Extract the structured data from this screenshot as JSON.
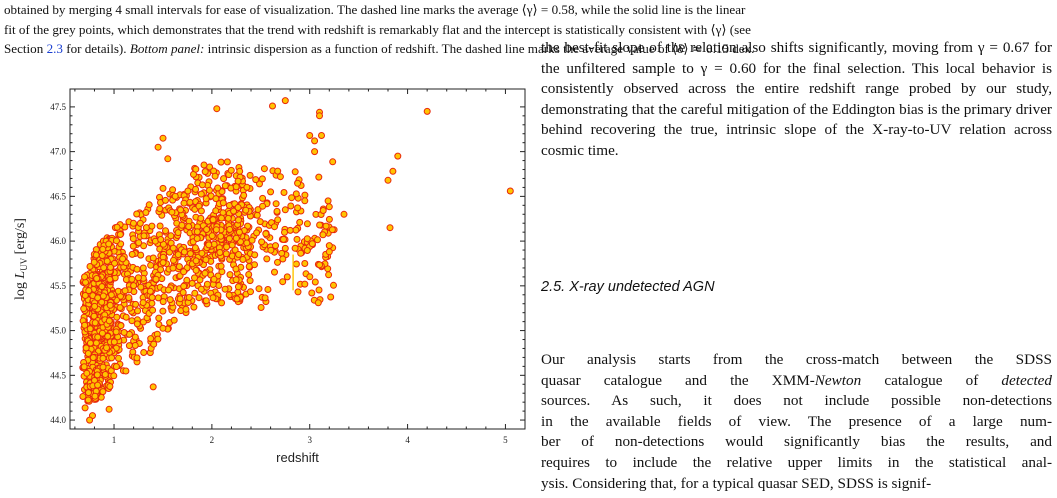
{
  "caption": {
    "line1": "obtained by merging 4 small intervals for ease of visualization. The dashed line marks the average ⟨γ⟩ = 0.58, while the solid line is the linear",
    "line2": "fit of the grey points, which demonstrates that the trend with redshift is remarkably flat and the intercept is statistically consistent with ⟨γ⟩ (see",
    "line3_a": "Section ",
    "line3_link": "2.3",
    "line3_b": " for details). ",
    "line3_panel": "Bottom panel:",
    "line3_c": " intrinsic dispersion as a function of redshift. The dashed line marks the average value of ⟨δ⟩ ≃ 0.15 dex."
  },
  "chart_data": {
    "type": "scatter",
    "xlabel": "redshift",
    "ylabel": "log L_UV [erg/s]",
    "xlim": [
      0.55,
      5.2
    ],
    "ylim": [
      43.9,
      47.7
    ],
    "xticks": [
      1,
      2,
      3,
      4,
      5
    ],
    "xtick_labels": [
      "1",
      "2",
      "3",
      "4",
      "5"
    ],
    "yticks": [
      44.0,
      44.5,
      45.0,
      45.5,
      46.0,
      46.5,
      47.0,
      47.5
    ],
    "ytick_labels": [
      "44.0",
      "44.5",
      "45.0",
      "45.5",
      "46.0",
      "46.5",
      "47.0",
      "47.5"
    ],
    "grid": false,
    "marker_fill": "#ffc400",
    "marker_edge": "#e8280c",
    "outliers": [
      [
        2.05,
        47.48
      ],
      [
        2.62,
        47.51
      ],
      [
        2.75,
        47.57
      ],
      [
        3.1,
        47.44
      ],
      [
        3.1,
        47.4
      ],
      [
        4.2,
        47.45
      ],
      [
        3.0,
        47.18
      ],
      [
        3.05,
        47.12
      ],
      [
        3.12,
        47.18
      ],
      [
        3.05,
        47.0
      ],
      [
        3.8,
        46.68
      ],
      [
        3.85,
        46.78
      ],
      [
        3.9,
        46.95
      ],
      [
        5.05,
        46.56
      ],
      [
        3.82,
        46.15
      ],
      [
        3.2,
        45.95
      ],
      [
        3.2,
        45.88
      ],
      [
        3.35,
        46.3
      ],
      [
        2.95,
        46.45
      ],
      [
        2.7,
        46.72
      ],
      [
        2.75,
        46.35
      ],
      [
        2.6,
        46.55
      ],
      [
        1.5,
        47.15
      ],
      [
        1.45,
        47.05
      ],
      [
        1.55,
        46.92
      ],
      [
        2.95,
        45.52
      ],
      [
        2.95,
        45.75
      ],
      [
        2.85,
        45.92
      ],
      [
        2.8,
        46.12
      ],
      [
        2.65,
        45.95
      ],
      [
        1.4,
        44.37
      ],
      [
        0.95,
        44.12
      ],
      [
        0.78,
        44.05
      ],
      [
        0.75,
        44.0
      ]
    ]
  },
  "body": {
    "para1": "the best-fit slope of the relation also shifts significantly, moving from γ = 0.67 for the unfiltered sample to γ = 0.60 for the final selection. This local behavior is consistently observed across the entire redshift range probed by our study, demonstrating that the careful mitigation of the Eddington bias is the primary driver behind recovering the true, intrinsic slope of the X-ray-to-UV relation across cosmic time.",
    "section_heading": "2.5. X-ray undetected AGN",
    "para2_l1": "Our analysis starts from the cross-match between the SDSS",
    "para2_l2a": "quasar catalogue and the XMM-",
    "para2_l2b": "Newton",
    "para2_l2c": " catalogue of ",
    "para2_l2d": "detected",
    "para2_l3": "sources. As such, it does not include possible non-detections",
    "para2_l4": "in the available fields of view. The presence of a large num-",
    "para2_l5": "ber of non-detections would significantly bias the results, and",
    "para2_l6": "requires to include the relative upper limits in the statistical anal-",
    "para2_l7": "ysis. Considering that, for a typical quasar SED, SDSS is signif-"
  }
}
